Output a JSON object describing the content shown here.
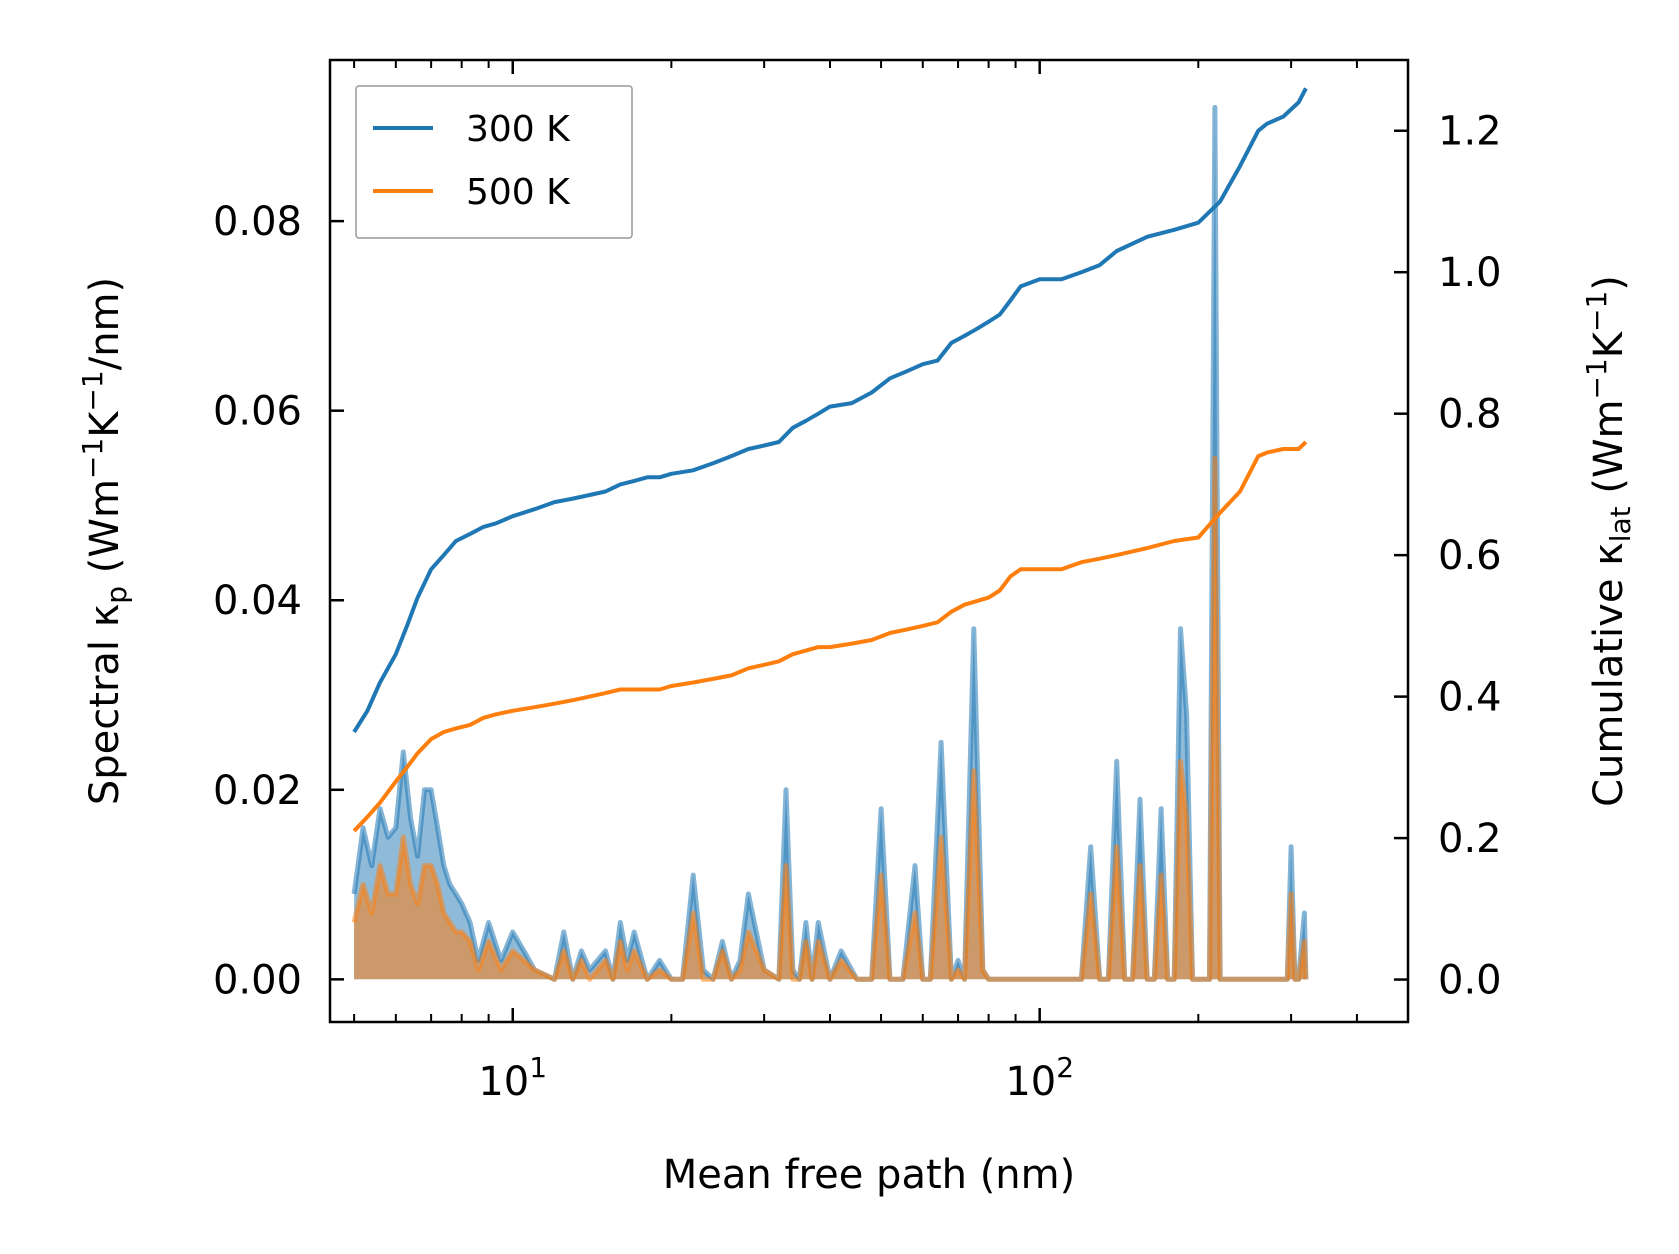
{
  "chart_data": {
    "type": "line",
    "xscale": "log",
    "xlabel": "Mean free path (nm)",
    "ylabel_left": {
      "main": "Spectral κ",
      "sub": "p",
      "units_prefix": " (Wm",
      "sup1": "−1",
      "units_mid": "K",
      "sup2": "−1",
      "units_suffix": "/nm)"
    },
    "ylabel_right": {
      "main": "Cumulative κ",
      "sub": "lat",
      "units_prefix": " (Wm",
      "sup1": "−1",
      "units_mid": "K",
      "sup2": "−1",
      "units_suffix": ")"
    },
    "xlim": [
      4.5,
      500
    ],
    "ylim_left": [
      -0.0045,
      0.097
    ],
    "ylim_right": [
      -0.06,
      1.3
    ],
    "xticks": [
      {
        "base": "10",
        "exp": "1",
        "value": 10
      },
      {
        "base": "10",
        "exp": "2",
        "value": 100
      }
    ],
    "yticks_left": [
      {
        "label": "0.00",
        "value": 0.0
      },
      {
        "label": "0.02",
        "value": 0.02
      },
      {
        "label": "0.04",
        "value": 0.04
      },
      {
        "label": "0.06",
        "value": 0.06
      },
      {
        "label": "0.08",
        "value": 0.08
      }
    ],
    "yticks_right": [
      {
        "label": "0.0",
        "value": 0.0
      },
      {
        "label": "0.2",
        "value": 0.2
      },
      {
        "label": "0.4",
        "value": 0.4
      },
      {
        "label": "0.6",
        "value": 0.6
      },
      {
        "label": "0.8",
        "value": 0.8
      },
      {
        "label": "1.0",
        "value": 1.0
      },
      {
        "label": "1.2",
        "value": 1.2
      }
    ],
    "legend": {
      "location": "upper-left",
      "entries": [
        {
          "label": "300 K",
          "color": "#1f77b4"
        },
        {
          "label": "500 K",
          "color": "#ff7f0e"
        }
      ]
    },
    "series": [
      {
        "name": "300 K",
        "color": "#1f77b4",
        "cumulative": {
          "x": [
            5,
            5.3,
            5.6,
            6,
            6.3,
            6.6,
            7,
            7.4,
            7.8,
            8.3,
            8.8,
            9.3,
            10,
            11,
            12,
            13,
            14,
            15,
            16,
            17,
            18,
            19,
            20,
            22,
            24,
            26,
            28,
            30,
            32,
            34,
            36,
            38,
            40,
            44,
            48,
            52,
            56,
            60,
            64,
            68,
            72,
            76,
            80,
            84,
            88,
            92,
            100,
            110,
            120,
            130,
            140,
            160,
            180,
            200,
            220,
            240,
            260,
            270,
            290,
            310,
            320
          ],
          "y": [
            0.35,
            0.38,
            0.42,
            0.46,
            0.5,
            0.54,
            0.58,
            0.6,
            0.62,
            0.63,
            0.64,
            0.645,
            0.655,
            0.665,
            0.675,
            0.68,
            0.685,
            0.69,
            0.7,
            0.705,
            0.71,
            0.71,
            0.715,
            0.72,
            0.73,
            0.74,
            0.75,
            0.755,
            0.76,
            0.78,
            0.79,
            0.8,
            0.81,
            0.815,
            0.83,
            0.85,
            0.86,
            0.87,
            0.875,
            0.9,
            0.91,
            0.92,
            0.93,
            0.94,
            0.96,
            0.98,
            0.99,
            0.99,
            1.0,
            1.01,
            1.03,
            1.05,
            1.06,
            1.07,
            1.1,
            1.15,
            1.2,
            1.21,
            1.22,
            1.24,
            1.26
          ]
        },
        "spectral": {
          "x": [
            5,
            5.2,
            5.4,
            5.6,
            5.8,
            6,
            6.2,
            6.4,
            6.6,
            6.8,
            7,
            7.2,
            7.4,
            7.6,
            7.8,
            8,
            8.3,
            8.6,
            9,
            9.5,
            10,
            10.5,
            11,
            12,
            12.5,
            13,
            13.5,
            14,
            15,
            15.5,
            16,
            16.5,
            17,
            18,
            19,
            20,
            21,
            22,
            23,
            24,
            25,
            26,
            27,
            28,
            30,
            32,
            33,
            34,
            35,
            36,
            37,
            38,
            40,
            42,
            45,
            48,
            50,
            52,
            55,
            58,
            60,
            62,
            65,
            68,
            70,
            72,
            75,
            78,
            80,
            85,
            88,
            90,
            92,
            95,
            100,
            110,
            120,
            125,
            130,
            135,
            140,
            145,
            150,
            155,
            160,
            165,
            170,
            175,
            180,
            185,
            190,
            195,
            200,
            210,
            215,
            220,
            225,
            230,
            235,
            240,
            245,
            248,
            250,
            252,
            255,
            260,
            280,
            295,
            300,
            305,
            310,
            318,
            320
          ],
          "y": [
            0.009,
            0.016,
            0.012,
            0.018,
            0.015,
            0.016,
            0.024,
            0.017,
            0.013,
            0.02,
            0.02,
            0.016,
            0.012,
            0.01,
            0.009,
            0.008,
            0.006,
            0.002,
            0.006,
            0.002,
            0.005,
            0.003,
            0.001,
            0.0,
            0.005,
            0.0,
            0.003,
            0.001,
            0.003,
            0.0,
            0.006,
            0.002,
            0.005,
            0.0,
            0.002,
            0.0,
            0.0,
            0.011,
            0.001,
            0.0,
            0.004,
            0.0,
            0.002,
            0.009,
            0.001,
            0.0,
            0.02,
            0.001,
            0.0,
            0.006,
            0.0,
            0.006,
            0.0,
            0.003,
            0.0,
            0.0,
            0.018,
            0.0,
            0.0,
            0.012,
            0.0,
            0.0,
            0.025,
            0.0,
            0.002,
            0.0,
            0.037,
            0.001,
            0.0,
            0.0,
            0.0,
            0.0,
            0.0,
            0.0,
            0.0,
            0.0,
            0.0,
            0.014,
            0.0,
            0.0,
            0.023,
            0.0,
            0.0,
            0.019,
            0.0,
            0.0,
            0.018,
            0.0,
            0.0,
            0.037,
            0.028,
            0.0,
            0.0,
            0.0,
            0.092,
            0.0,
            0.0,
            0.0,
            0.0,
            0.0,
            0.0,
            0.0,
            0.0,
            0.0,
            0.0,
            0.0,
            0.0,
            0.0,
            0.014,
            0.0,
            0.0,
            0.007,
            0.0
          ]
        }
      },
      {
        "name": "500 K",
        "color": "#ff7f0e",
        "cumulative": {
          "x": [
            5,
            5.3,
            5.6,
            6,
            6.3,
            6.6,
            7,
            7.4,
            7.8,
            8.3,
            8.8,
            9.3,
            10,
            11,
            12,
            13,
            14,
            15,
            16,
            17,
            18,
            19,
            20,
            22,
            24,
            26,
            28,
            30,
            32,
            34,
            36,
            38,
            40,
            44,
            48,
            52,
            56,
            60,
            64,
            68,
            72,
            76,
            80,
            84,
            88,
            92,
            100,
            110,
            120,
            130,
            140,
            160,
            180,
            200,
            220,
            240,
            260,
            270,
            290,
            310,
            320
          ],
          "y": [
            0.21,
            0.23,
            0.25,
            0.28,
            0.3,
            0.32,
            0.34,
            0.35,
            0.355,
            0.36,
            0.37,
            0.375,
            0.38,
            0.385,
            0.39,
            0.395,
            0.4,
            0.405,
            0.41,
            0.41,
            0.41,
            0.41,
            0.415,
            0.42,
            0.425,
            0.43,
            0.44,
            0.445,
            0.45,
            0.46,
            0.465,
            0.47,
            0.47,
            0.475,
            0.48,
            0.49,
            0.495,
            0.5,
            0.505,
            0.52,
            0.53,
            0.535,
            0.54,
            0.55,
            0.57,
            0.58,
            0.58,
            0.58,
            0.59,
            0.595,
            0.6,
            0.61,
            0.62,
            0.625,
            0.66,
            0.69,
            0.74,
            0.745,
            0.75,
            0.75,
            0.76
          ]
        },
        "spectral": {
          "x": [
            5,
            5.2,
            5.4,
            5.6,
            5.8,
            6,
            6.2,
            6.4,
            6.6,
            6.8,
            7,
            7.2,
            7.4,
            7.6,
            7.8,
            8,
            8.3,
            8.6,
            9,
            9.5,
            10,
            10.5,
            11,
            12,
            12.5,
            13,
            13.5,
            14,
            15,
            15.5,
            16,
            16.5,
            17,
            18,
            19,
            20,
            21,
            22,
            23,
            24,
            25,
            26,
            27,
            28,
            30,
            32,
            33,
            34,
            35,
            36,
            37,
            38,
            40,
            42,
            45,
            48,
            50,
            52,
            55,
            58,
            60,
            62,
            65,
            68,
            70,
            72,
            75,
            78,
            80,
            85,
            88,
            90,
            92,
            95,
            100,
            110,
            120,
            125,
            130,
            135,
            140,
            145,
            150,
            155,
            160,
            165,
            170,
            175,
            180,
            185,
            190,
            195,
            200,
            210,
            215,
            220,
            225,
            230,
            235,
            240,
            245,
            248,
            250,
            252,
            255,
            260,
            280,
            295,
            300,
            305,
            310,
            318,
            320
          ],
          "y": [
            0.006,
            0.01,
            0.007,
            0.012,
            0.009,
            0.009,
            0.015,
            0.01,
            0.008,
            0.012,
            0.012,
            0.01,
            0.007,
            0.006,
            0.005,
            0.005,
            0.004,
            0.001,
            0.004,
            0.001,
            0.003,
            0.002,
            0.001,
            0.0,
            0.003,
            0.0,
            0.002,
            0.0,
            0.002,
            0.0,
            0.004,
            0.001,
            0.003,
            0.0,
            0.001,
            0.0,
            0.0,
            0.007,
            0.0,
            0.0,
            0.003,
            0.0,
            0.001,
            0.005,
            0.001,
            0.0,
            0.012,
            0.0,
            0.0,
            0.004,
            0.0,
            0.004,
            0.0,
            0.002,
            0.0,
            0.0,
            0.011,
            0.0,
            0.0,
            0.007,
            0.0,
            0.0,
            0.015,
            0.0,
            0.001,
            0.0,
            0.022,
            0.001,
            0.0,
            0.0,
            0.0,
            0.0,
            0.0,
            0.0,
            0.0,
            0.0,
            0.0,
            0.009,
            0.0,
            0.0,
            0.014,
            0.0,
            0.0,
            0.012,
            0.0,
            0.0,
            0.011,
            0.0,
            0.0,
            0.023,
            0.017,
            0.0,
            0.0,
            0.0,
            0.055,
            0.0,
            0.0,
            0.0,
            0.0,
            0.0,
            0.0,
            0.0,
            0.0,
            0.0,
            0.0,
            0.0,
            0.0,
            0.0,
            0.009,
            0.0,
            0.0,
            0.004,
            0.0
          ]
        }
      }
    ]
  }
}
